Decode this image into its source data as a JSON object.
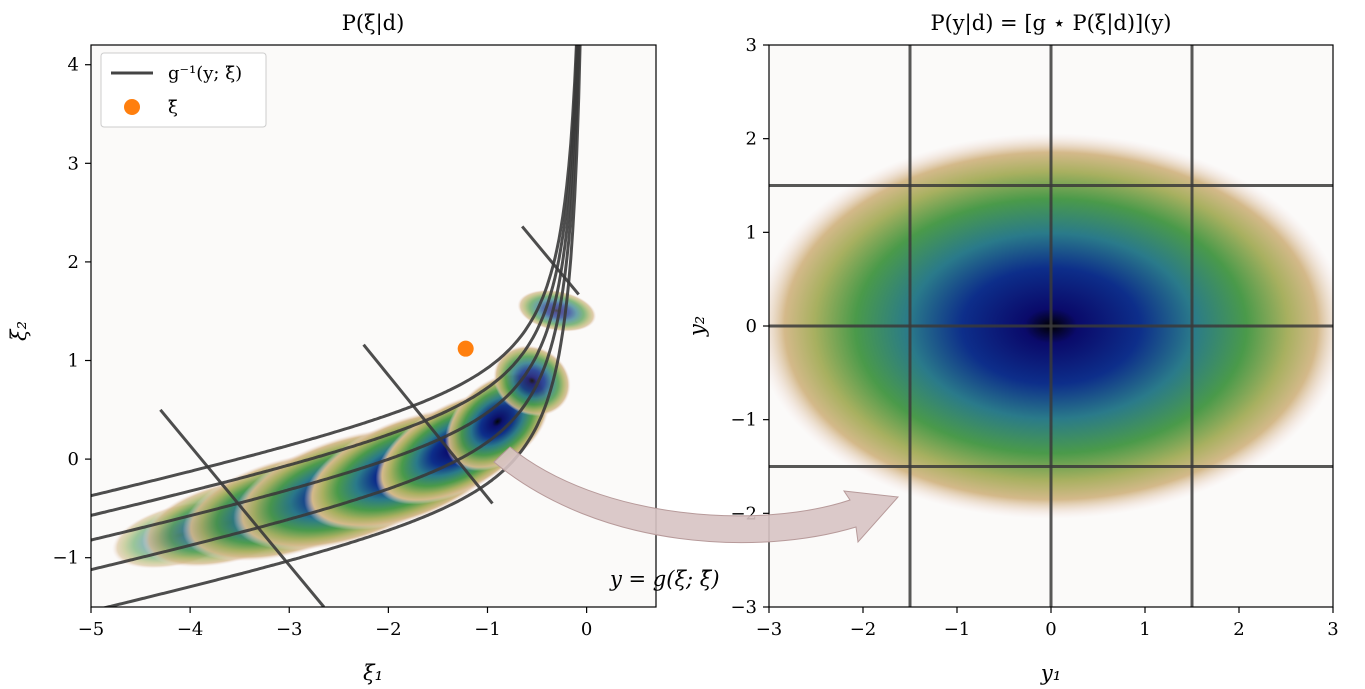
{
  "chart_data": [
    {
      "type": "heatmap",
      "title": "P(ξ|d)",
      "xlabel": "ξ₁",
      "ylabel": "ξ₂",
      "xlim": [
        -5,
        0.7
      ],
      "ylim": [
        -1.5,
        4.2
      ],
      "x_ticks": [
        "−5",
        "−4",
        "−3",
        "−2",
        "−1",
        "0"
      ],
      "x_tick_values": [
        -5,
        -4,
        -3,
        -2,
        -1,
        0
      ],
      "y_ticks": [
        "−1",
        "0",
        "1",
        "2",
        "3",
        "4"
      ],
      "y_tick_values": [
        -1,
        0,
        1,
        2,
        3,
        4
      ],
      "grid": "curved grid g⁻¹(y; ξ̄)",
      "legend_position": "top-left",
      "legend": [
        {
          "label": "g⁻¹(y; ξ̄)",
          "style": "line",
          "color": "#444444"
        },
        {
          "label": "ξ̄",
          "style": "marker",
          "color": "#ff7f0e"
        }
      ],
      "mean_point": {
        "x": -1.22,
        "y": 1.12
      },
      "grid_lines_y1": [
        -1.5,
        0,
        1.5
      ],
      "grid_lines_y2": [
        -1.5,
        0,
        1.5
      ],
      "colormap": "gist_earth_r"
    },
    {
      "type": "heatmap",
      "title": "P(y|d) = [g ⋆ P(ξ|d)](y)",
      "xlabel": "y₁",
      "ylabel": "y₂",
      "xlim": [
        -3,
        3
      ],
      "ylim": [
        -3,
        3
      ],
      "x_ticks": [
        "−3",
        "−2",
        "−1",
        "0",
        "1",
        "2",
        "3"
      ],
      "x_tick_values": [
        -3,
        -2,
        -1,
        0,
        1,
        2,
        3
      ],
      "y_ticks": [
        "−3",
        "−2",
        "−1",
        "0",
        "1",
        "2",
        "3"
      ],
      "y_tick_values": [
        -3,
        -2,
        -1,
        0,
        1,
        2,
        3
      ],
      "grid_lines": [
        -1.5,
        0,
        1.5
      ],
      "colormap": "gist_earth_r"
    }
  ],
  "annotation": {
    "text": "y = g(ξ; ξ̄)"
  },
  "colors": {
    "grid_line": "#3a3a3a",
    "arrow_fill": "#d7c3c3",
    "background_panel": "#fbfaf9",
    "mean_marker": "#ff7f0e"
  }
}
